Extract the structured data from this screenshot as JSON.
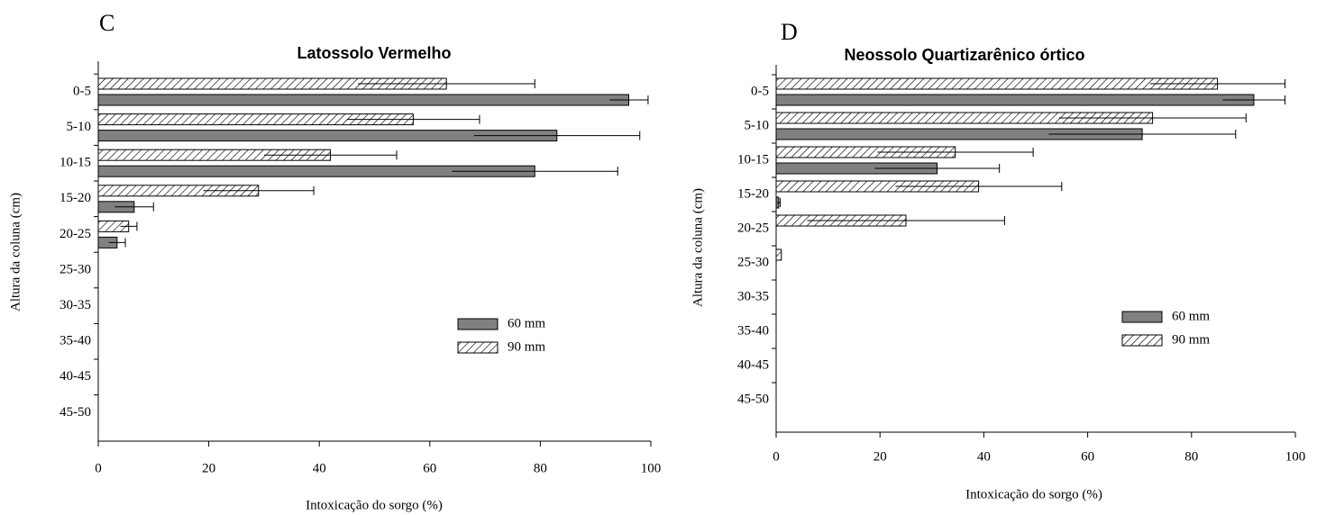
{
  "chart_data": [
    {
      "type": "hbar",
      "panel_label": "C",
      "title": "Latossolo Vermelho",
      "x_label": "Intoxicação do sorgo (%)",
      "y_label": "Altura da coluna (cm)",
      "categories": [
        "0-5",
        "5-10",
        "10-15",
        "15-20",
        "20-25",
        "25-30",
        "30-35",
        "35-40",
        "40-45",
        "45-50"
      ],
      "series": [
        {
          "name": "90 mm",
          "color": "#ffffff",
          "hatch": true,
          "values": [
            63,
            57,
            42,
            29,
            5.5,
            null,
            null,
            null,
            null,
            null
          ],
          "errors": [
            16,
            12,
            12,
            10,
            1.5,
            null,
            null,
            null,
            null,
            null
          ]
        },
        {
          "name": "60 mm",
          "color": "#808080",
          "hatch": false,
          "values": [
            96,
            83,
            79,
            6.5,
            3.4,
            null,
            null,
            null,
            null,
            null
          ],
          "errors": [
            3.5,
            15,
            15,
            3.5,
            1.5,
            null,
            null,
            null,
            null,
            null
          ]
        }
      ],
      "xlim": [
        0,
        100
      ],
      "xticks": [
        0,
        20,
        40,
        60,
        80,
        100
      ]
    },
    {
      "type": "hbar",
      "panel_label": "D",
      "title": "Neossolo Quartizarênico órtico",
      "x_label": "Intoxicação do sorgo (%)",
      "y_label": "Altura da coluna (cm)",
      "categories": [
        "0-5",
        "5-10",
        "10-15",
        "15-20",
        "20-25",
        "25-30",
        "30-35",
        "35-40",
        "40-45",
        "45-50"
      ],
      "series": [
        {
          "name": "90 mm",
          "color": "#ffffff",
          "hatch": true,
          "values": [
            85,
            72.5,
            34.5,
            39,
            25,
            1,
            null,
            null,
            null,
            null
          ],
          "errors": [
            13,
            18,
            15,
            16,
            19,
            null,
            null,
            null,
            null,
            null
          ]
        },
        {
          "name": "60 mm",
          "color": "#808080",
          "hatch": false,
          "values": [
            92,
            70.5,
            31,
            0.5,
            null,
            null,
            null,
            null,
            null,
            null
          ],
          "errors": [
            6,
            18,
            12,
            0.3,
            null,
            null,
            null,
            null,
            null,
            null
          ]
        }
      ],
      "xlim": [
        0,
        100
      ],
      "xticks": [
        0,
        20,
        40,
        60,
        80,
        100
      ]
    }
  ]
}
